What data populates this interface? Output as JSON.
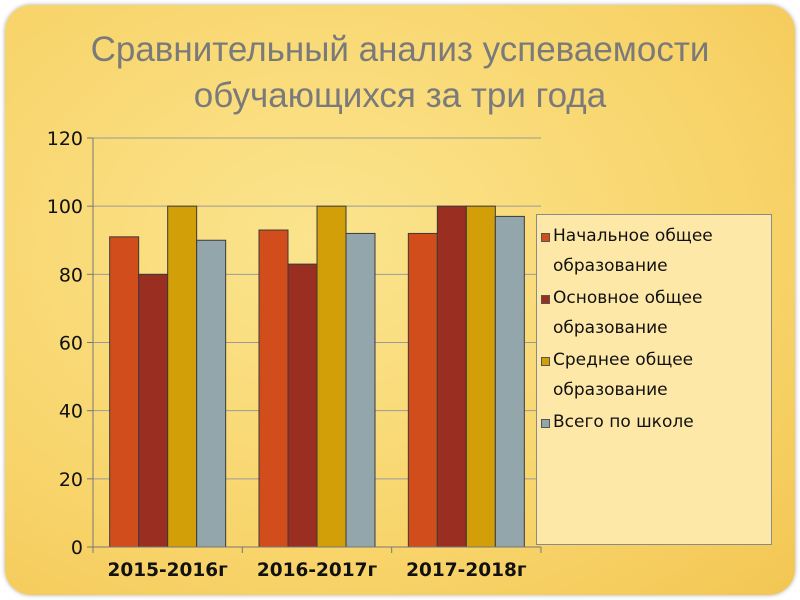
{
  "slide": {
    "title_line1": "Сравнительный анализ успеваемости",
    "title_line2": "обучающихся  за три года"
  },
  "colors": {
    "initial": "#d14e1c",
    "basic": "#9a2e20",
    "secondary": "#d29f08",
    "school": "#92a6ac"
  },
  "chart_data": {
    "type": "bar",
    "categories": [
      "2015-2016г",
      "2016-2017г",
      "2017-2018г"
    ],
    "series": [
      {
        "name": "Начальное общее образование",
        "color": "#d14e1c",
        "values": [
          91,
          93,
          92
        ]
      },
      {
        "name": "Основное общее образование",
        "color": "#9a2e20",
        "values": [
          80,
          83,
          100
        ]
      },
      {
        "name": "Среднее общее образование",
        "color": "#d29f08",
        "values": [
          100,
          100,
          100
        ]
      },
      {
        "name": "Всего по школе",
        "color": "#92a6ac",
        "values": [
          90,
          92,
          97
        ]
      }
    ],
    "yticks": [
      "0",
      "20",
      "40",
      "60",
      "80",
      "100",
      "120"
    ],
    "ylim": [
      0,
      120
    ],
    "grid": true,
    "legend_position": "right"
  },
  "legend": {
    "items": [
      {
        "label": "Начальное общее\nобразование",
        "color": "#d14e1c"
      },
      {
        "label": "Основное общее\nобразование",
        "color": "#9a2e20"
      },
      {
        "label": "Среднее общее\nобразование",
        "color": "#d29f08"
      },
      {
        "label": "Всего по школе",
        "color": "#92a6ac"
      }
    ]
  }
}
